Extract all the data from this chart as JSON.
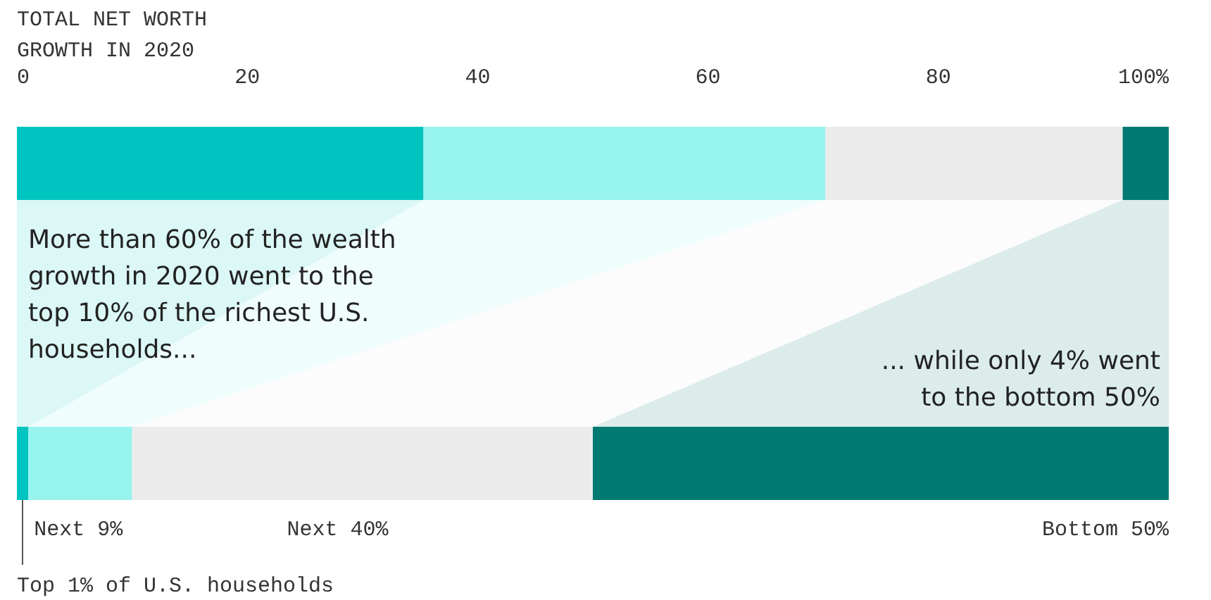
{
  "chart_data": {
    "type": "bar",
    "orientation": "horizontal",
    "stacked": true,
    "title": "TOTAL NET WORTH GROWTH IN 2020",
    "categories": [
      null,
      null
    ],
    "series": [
      {
        "name": "Top 1% of U.S. households",
        "color": "#00c4bf",
        "values": [
          35.3,
          1
        ]
      },
      {
        "name": "Next 9%",
        "color": "#96f3ee",
        "values": [
          34.9,
          9
        ]
      },
      {
        "name": "Next 40%",
        "color": "#ebebeb",
        "values": [
          25.8,
          40
        ]
      },
      {
        "name": "Bottom 50%",
        "color": "#007a72",
        "values": [
          4,
          50
        ]
      }
    ],
    "xlim": [
      0,
      100
    ],
    "xticks": [
      0,
      20,
      40,
      60,
      80,
      {
        "value": 100,
        "label": "100%"
      }
    ],
    "grid": false,
    "annotations": [
      "More than 60% of the wealth growth in 2020 went to the top 10% of the richest U.S. households...",
      "... while only 4% went to the bottom 50%"
    ]
  }
}
